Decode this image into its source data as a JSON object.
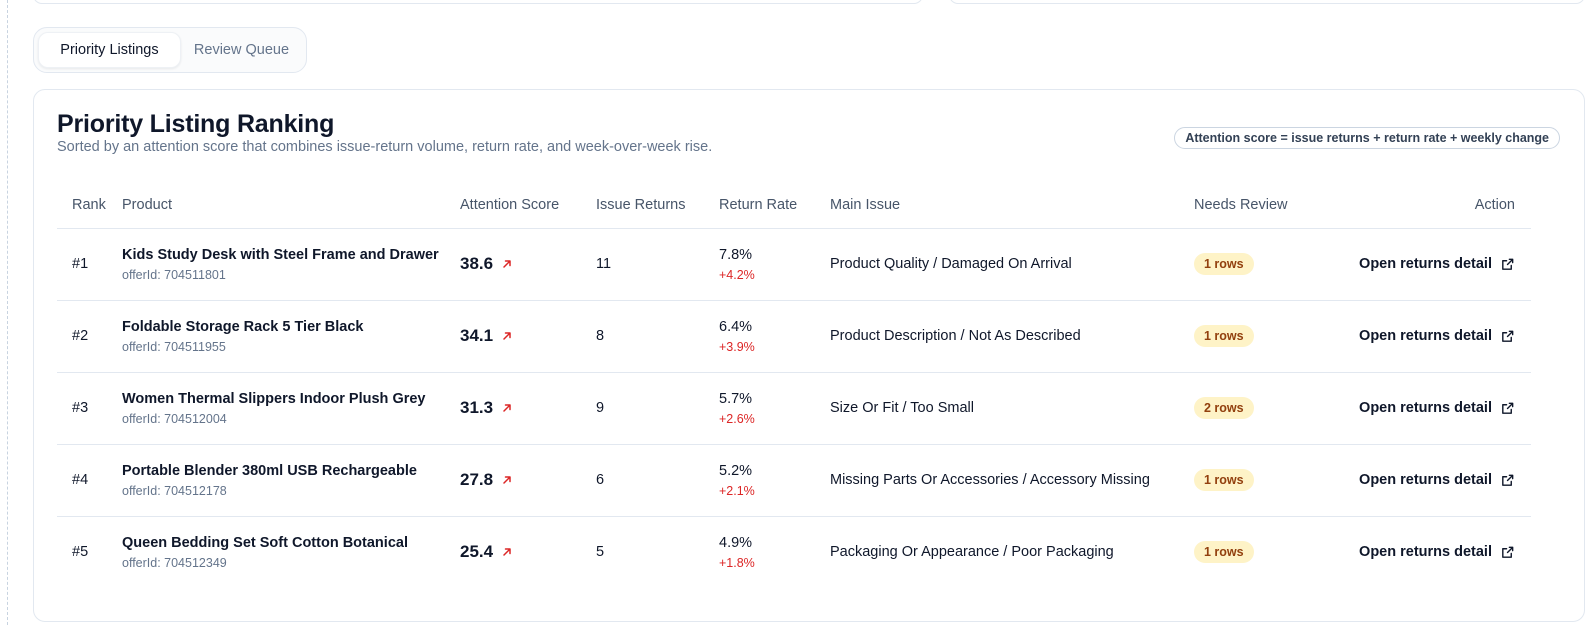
{
  "tabs": [
    {
      "label": "Priority Listings",
      "active": true
    },
    {
      "label": "Review Queue",
      "active": false
    }
  ],
  "panel": {
    "title": "Priority Listing Ranking",
    "subtitle": "Sorted by an attention score that combines issue-return volume, return rate, and week-over-week rise.",
    "formula": "Attention score = issue returns + return rate + weekly change"
  },
  "table": {
    "columns": {
      "rank": "Rank",
      "product": "Product",
      "score": "Attention Score",
      "returns": "Issue Returns",
      "rate": "Return Rate",
      "issue": "Main Issue",
      "review": "Needs Review",
      "action": "Action"
    },
    "rows": [
      {
        "rank": "#1",
        "name": "Kids Study Desk with Steel Frame and Drawer",
        "offer": "offerId: 704511801",
        "score": "38.6",
        "returns": "11",
        "rate": "7.8%",
        "delta": "+4.2%",
        "issue": "Product Quality / Damaged On Arrival",
        "review": "1 rows",
        "action": "Open returns detail"
      },
      {
        "rank": "#2",
        "name": "Foldable Storage Rack 5 Tier Black",
        "offer": "offerId: 704511955",
        "score": "34.1",
        "returns": "8",
        "rate": "6.4%",
        "delta": "+3.9%",
        "issue": "Product Description / Not As Described",
        "review": "1 rows",
        "action": "Open returns detail"
      },
      {
        "rank": "#3",
        "name": "Women Thermal Slippers Indoor Plush Grey",
        "offer": "offerId: 704512004",
        "score": "31.3",
        "returns": "9",
        "rate": "5.7%",
        "delta": "+2.6%",
        "issue": "Size Or Fit / Too Small",
        "review": "2 rows",
        "action": "Open returns detail"
      },
      {
        "rank": "#4",
        "name": "Portable Blender 380ml USB Rechargeable",
        "offer": "offerId: 704512178",
        "score": "27.8",
        "returns": "6",
        "rate": "5.2%",
        "delta": "+2.1%",
        "issue": "Missing Parts Or Accessories / Accessory Missing",
        "review": "1 rows",
        "action": "Open returns detail"
      },
      {
        "rank": "#5",
        "name": "Queen Bedding Set Soft Cotton Botanical",
        "offer": "offerId: 704512349",
        "score": "25.4",
        "returns": "5",
        "rate": "4.9%",
        "delta": "+1.8%",
        "issue": "Packaging Or Appearance / Poor Packaging",
        "review": "1 rows",
        "action": "Open returns detail"
      }
    ]
  },
  "icons": {
    "trend": "arrow-up-right-icon",
    "action": "external-link-icon"
  },
  "colors": {
    "trend_red": "#dc2626",
    "badge_bg": "#fef3c7",
    "badge_text": "#92400e"
  }
}
